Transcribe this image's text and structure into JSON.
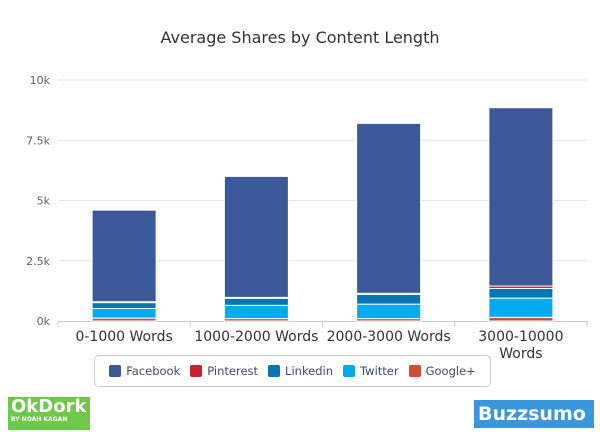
{
  "chart_data": {
    "type": "bar",
    "stacked": true,
    "title": "Average Shares by Content Length",
    "categories": [
      "0-1000 Words",
      "1000-2000 Words",
      "2000-3000 Words",
      "3000-10000 Words"
    ],
    "ylim": [
      0,
      10000
    ],
    "yticks": [
      "0k",
      "2.5k",
      "5k",
      "7.5k",
      "10k"
    ],
    "ytick_values": [
      0,
      2500,
      5000,
      7500,
      10000
    ],
    "grid": true,
    "legend_position": "bottom",
    "series": [
      {
        "name": "Google+",
        "color": "#d34a3a",
        "values": [
          120,
          100,
          100,
          150
        ]
      },
      {
        "name": "Twitter",
        "color": "#00aced",
        "values": [
          400,
          550,
          600,
          800
        ]
      },
      {
        "name": "Linkedin",
        "color": "#0077b5",
        "values": [
          250,
          300,
          400,
          400
        ]
      },
      {
        "name": "Pinterest",
        "color": "#cb2027",
        "values": [
          30,
          30,
          50,
          100
        ]
      },
      {
        "name": "Facebook",
        "color": "#3b5998",
        "values": [
          3800,
          5020,
          7050,
          7400
        ]
      }
    ],
    "legend_order": [
      "Facebook",
      "Pinterest",
      "Linkedin",
      "Twitter",
      "Google+"
    ]
  },
  "logos": {
    "left": "OkDork",
    "left_sub": "BY NOAH KAGAN",
    "right": "Buzzsumo"
  }
}
